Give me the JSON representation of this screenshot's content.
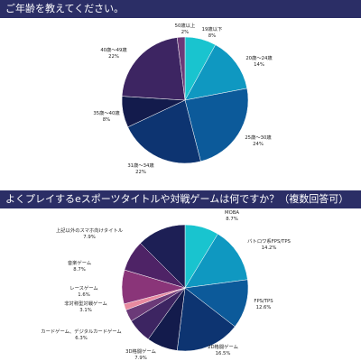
{
  "chart_data": [
    {
      "type": "pie",
      "title": "ご年齢を教えてください。",
      "slices": [
        {
          "label": "19歳以下",
          "value": 8,
          "display": "8%",
          "color": "#19c4cf"
        },
        {
          "label": "20歳～24歳",
          "value": 14,
          "display": "14%",
          "color": "#0f98c1"
        },
        {
          "label": "25歳～30歳",
          "value": 24,
          "display": "24%",
          "color": "#0c5a9a"
        },
        {
          "label": "31歳～34歳",
          "value": 22,
          "display": "22%",
          "color": "#0d3471"
        },
        {
          "label": "35歳～40歳",
          "value": 8,
          "display": "8%",
          "color": "#131b4c"
        },
        {
          "label": "40歳～49歳",
          "value": 22,
          "display": "22%",
          "color": "#3d2562"
        },
        {
          "label": "50歳以上",
          "value": 2,
          "display": "2%",
          "color": "#6b3a78"
        }
      ]
    },
    {
      "type": "pie",
      "title": "よくプレイするeスポーツタイトルや対戦ゲームは何ですか？（複数回答可）",
      "slices": [
        {
          "label": "MOBA",
          "value": 8.7,
          "display": "8.7%",
          "color": "#19c4cf"
        },
        {
          "label": "バトロワ系FPS/TPS",
          "value": 14.2,
          "display": "14.2%",
          "color": "#0f98c1"
        },
        {
          "label": "FPS/TPS",
          "value": 12.6,
          "display": "12.6%",
          "color": "#0c5a9a"
        },
        {
          "label": "2D格闘ゲーム",
          "value": 16.5,
          "display": "16.5%",
          "color": "#0d3471"
        },
        {
          "label": "3D格闘ゲーム",
          "value": 7.9,
          "display": "7.9%",
          "color": "#131b4c"
        },
        {
          "label": "カードゲーム、デジタルカードゲーム",
          "value": 6.3,
          "display": "6.3%",
          "color": "#3d2562"
        },
        {
          "label": "非対称型対戦ゲーム",
          "value": 3.1,
          "display": "3.1%",
          "color": "#6b3a78"
        },
        {
          "label": "レースゲーム",
          "value": 1.6,
          "display": "1.6%",
          "color": "#e88aa0"
        },
        {
          "label": "音楽ゲーム",
          "value": 8.7,
          "display": "8.7%",
          "color": "#8a3579"
        },
        {
          "label": "上記以外のスマホ向けタイトル",
          "value": 7.9,
          "display": "7.9%",
          "color": "#4e2366"
        },
        {
          "label": "",
          "value": 12.5,
          "display": "",
          "color": "#1d1f55"
        }
      ]
    }
  ]
}
